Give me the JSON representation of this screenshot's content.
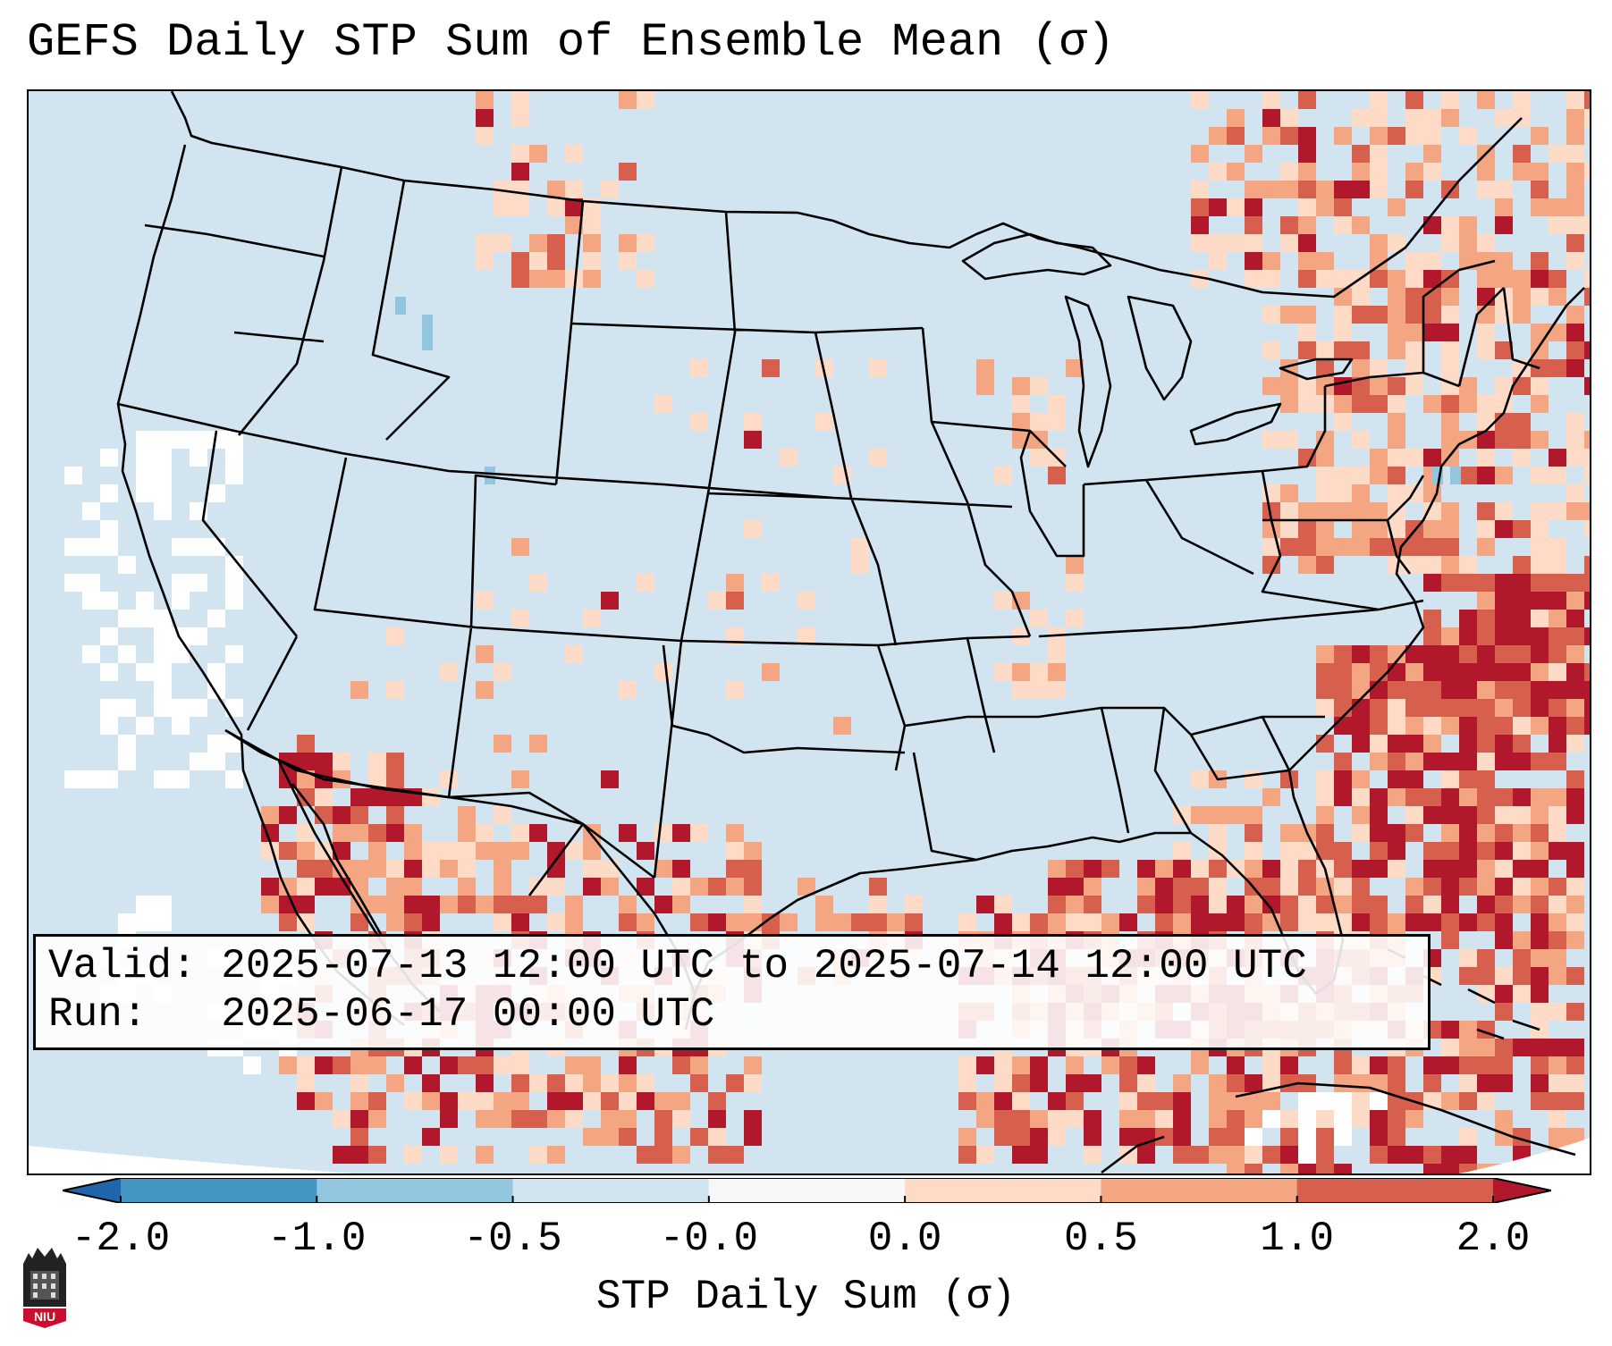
{
  "title": "GEFS Daily STP Sum of Ensemble Mean (σ)",
  "info": {
    "valid_label": "Valid:",
    "valid_value": "2025-07-13 12:00 UTC to 2025-07-14 12:00 UTC",
    "run_label": "Run:",
    "run_value": "2025-06-17 00:00 UTC"
  },
  "colorbar": {
    "label": "STP Daily Sum (σ)",
    "ticks": [
      "-2.0",
      "-1.0",
      "-0.5",
      "-0.0",
      "0.0",
      "0.5",
      "1.0",
      "2.0"
    ],
    "colors": [
      "#4393c3",
      "#92c5de",
      "#d1e5f0",
      "#f7f7f7",
      "#fddbc7",
      "#f4a582",
      "#d6604d",
      "#b2182b"
    ],
    "under_color": "#2166ac",
    "over_color": "#b2182b"
  },
  "logo": {
    "icon": "niu-university-icon",
    "text": "NIU"
  },
  "map": {
    "region": "CONUS",
    "background_color": "#d1e4ef",
    "anomaly_regions": [
      {
        "area": "Gulf of Mexico coast",
        "level": "2.0"
      },
      {
        "area": "Florida",
        "level": "2.0"
      },
      {
        "area": "Western Atlantic",
        "level": "2.0"
      },
      {
        "area": "Northeast US",
        "level": "1.0"
      },
      {
        "area": "Southeast Canada",
        "level": "0.5"
      },
      {
        "area": "Gulf of California",
        "level": "2.0"
      },
      {
        "area": "Northern Mexico",
        "level": "1.0"
      },
      {
        "area": "Eastern Pacific offshore California",
        "level": "-0.0"
      }
    ]
  }
}
